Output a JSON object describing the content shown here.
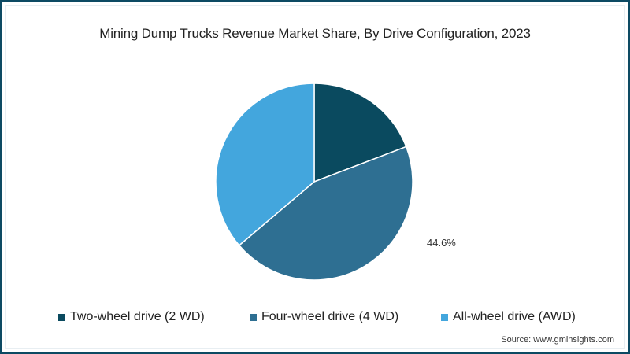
{
  "chart_data": {
    "type": "pie",
    "title": "Mining Dump Trucks Revenue Market Share, By Drive Configuration, 2023",
    "categories": [
      "Two-wheel drive (2 WD)",
      "Four-wheel drive (4 WD)",
      "All-wheel drive (AWD)"
    ],
    "values": [
      19.2,
      44.6,
      36.2
    ],
    "colors": [
      "#0a4a5f",
      "#2e6f92",
      "#43a6dd"
    ],
    "data_labels": [
      {
        "category": "Four-wheel drive (4 WD)",
        "text": "44.6%"
      }
    ],
    "start_angle_deg": 0,
    "direction": "clockwise",
    "legend_position": "bottom",
    "xlabel": "",
    "ylabel": ""
  },
  "header": {
    "title": "Mining Dump Trucks Revenue Market Share, By Drive Configuration, 2023"
  },
  "labels": {
    "four_wd_value": "44.6%"
  },
  "legend": {
    "items": [
      {
        "label": "Two-wheel drive (2 WD)",
        "color": "#0a4a5f"
      },
      {
        "label": "Four-wheel drive (4 WD)",
        "color": "#2e6f92"
      },
      {
        "label": "All-wheel drive (AWD)",
        "color": "#43a6dd"
      }
    ]
  },
  "footer": {
    "source": "Source: www.gminsights.com"
  },
  "theme": {
    "border_color": "#0d4a63"
  }
}
